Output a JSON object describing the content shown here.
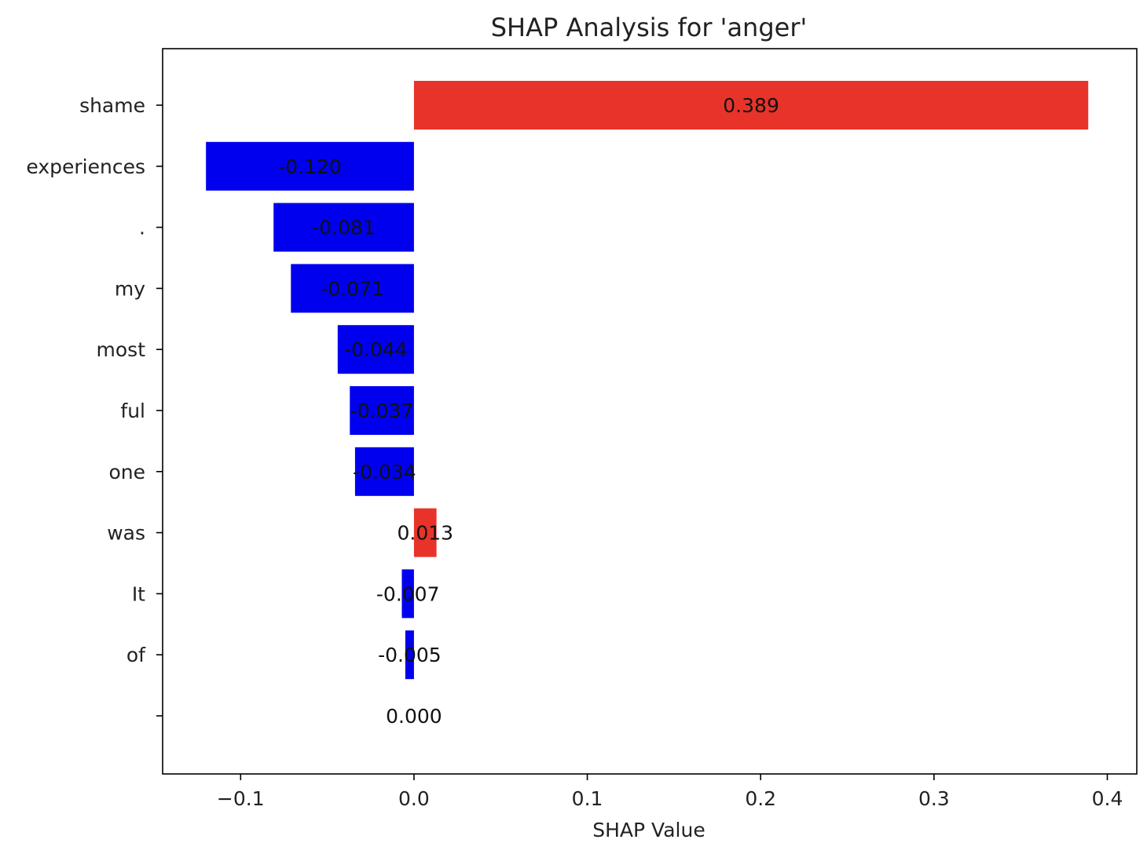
{
  "chart_data": {
    "type": "bar",
    "orientation": "horizontal",
    "title": "SHAP Analysis for 'anger'",
    "xlabel": "SHAP Value",
    "ylabel": "",
    "xlim": [
      -0.145,
      0.417
    ],
    "xticks": [
      -0.1,
      0.0,
      0.1,
      0.2,
      0.3,
      0.4
    ],
    "xtick_labels": [
      "−0.1",
      "0.0",
      "0.1",
      "0.2",
      "0.3",
      "0.4"
    ],
    "grid": false,
    "categories": [
      "shame",
      "experiences",
      ".",
      "my",
      "most",
      "ful",
      "one",
      "was",
      "It",
      "of",
      ""
    ],
    "values": [
      0.389,
      -0.12,
      -0.081,
      -0.071,
      -0.044,
      -0.037,
      -0.034,
      0.013,
      -0.007,
      -0.005,
      0.0
    ],
    "value_labels": [
      "0.389",
      "-0.120",
      "-0.081",
      "-0.071",
      "-0.044",
      "-0.037",
      "-0.034",
      "0.013",
      "-0.007",
      "-0.005",
      "0.000"
    ],
    "colors": {
      "positive": "#e8332a",
      "negative": "#0000ee"
    }
  }
}
